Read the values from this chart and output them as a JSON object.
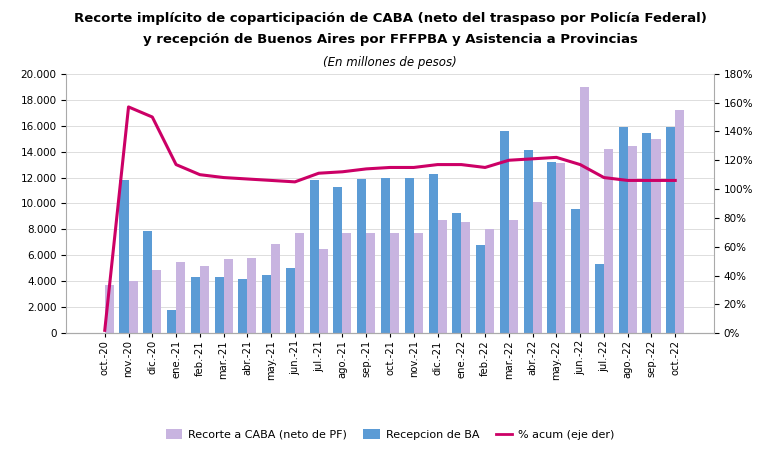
{
  "title_line1": "Recorte implícito de coparticipación de CABA (neto del traspaso por Policía Federal)",
  "title_line2": "y recepción de Buenos Aires por FFFPBA y Asistencia a Provincias",
  "subtitle": "(En millones de pesos)",
  "categories": [
    "oct.-20",
    "nov.-20",
    "dic.-20",
    "ene.-21",
    "feb.-21",
    "mar.-21",
    "abr.-21",
    "may.-21",
    "jun.-21",
    "jul.-21",
    "ago.-21",
    "sep.-21",
    "oct.-21",
    "nov.-21",
    "dic.-21",
    "ene.-22",
    "feb.-22",
    "mar.-22",
    "abr.-22",
    "may.-22",
    "jun.-22",
    "jul.-22",
    "ago.-22",
    "sep.-22",
    "oct.-22"
  ],
  "recorte_caba": [
    3700,
    4000,
    4900,
    5500,
    5200,
    5700,
    5800,
    6900,
    7700,
    6500,
    7700,
    7700,
    7700,
    7700,
    8700,
    8600,
    8000,
    8700,
    10100,
    13100,
    19000,
    14200,
    14400,
    15000,
    17200
  ],
  "recepcion_ba": [
    0,
    11800,
    7900,
    1800,
    4300,
    4300,
    4200,
    4500,
    5000,
    11800,
    11300,
    11900,
    12000,
    12000,
    12300,
    9300,
    6800,
    15600,
    14100,
    13200,
    9600,
    5300,
    15900,
    15400,
    15900
  ],
  "pct_acum": [
    0.02,
    1.57,
    1.5,
    1.17,
    1.1,
    1.08,
    1.07,
    1.06,
    1.05,
    1.11,
    1.12,
    1.14,
    1.15,
    1.15,
    1.17,
    1.17,
    1.15,
    1.2,
    1.21,
    1.22,
    1.17,
    1.08,
    1.06,
    1.06,
    1.06
  ],
  "color_caba": "#c8b4e0",
  "color_ba": "#5b9bd5",
  "color_line": "#cc0066",
  "ylim_left": [
    0,
    20000
  ],
  "ylim_right": [
    0,
    1.8
  ],
  "yticks_left": [
    0,
    2000,
    4000,
    6000,
    8000,
    10000,
    12000,
    14000,
    16000,
    18000,
    20000
  ],
  "yticks_right": [
    0.0,
    0.2,
    0.4,
    0.6,
    0.8,
    1.0,
    1.2,
    1.4,
    1.6,
    1.8
  ],
  "legend_labels": [
    "Recorte a CABA (neto de PF)",
    "Recepcion de BA",
    "% acum (eje der)"
  ],
  "background_color": "#ffffff"
}
